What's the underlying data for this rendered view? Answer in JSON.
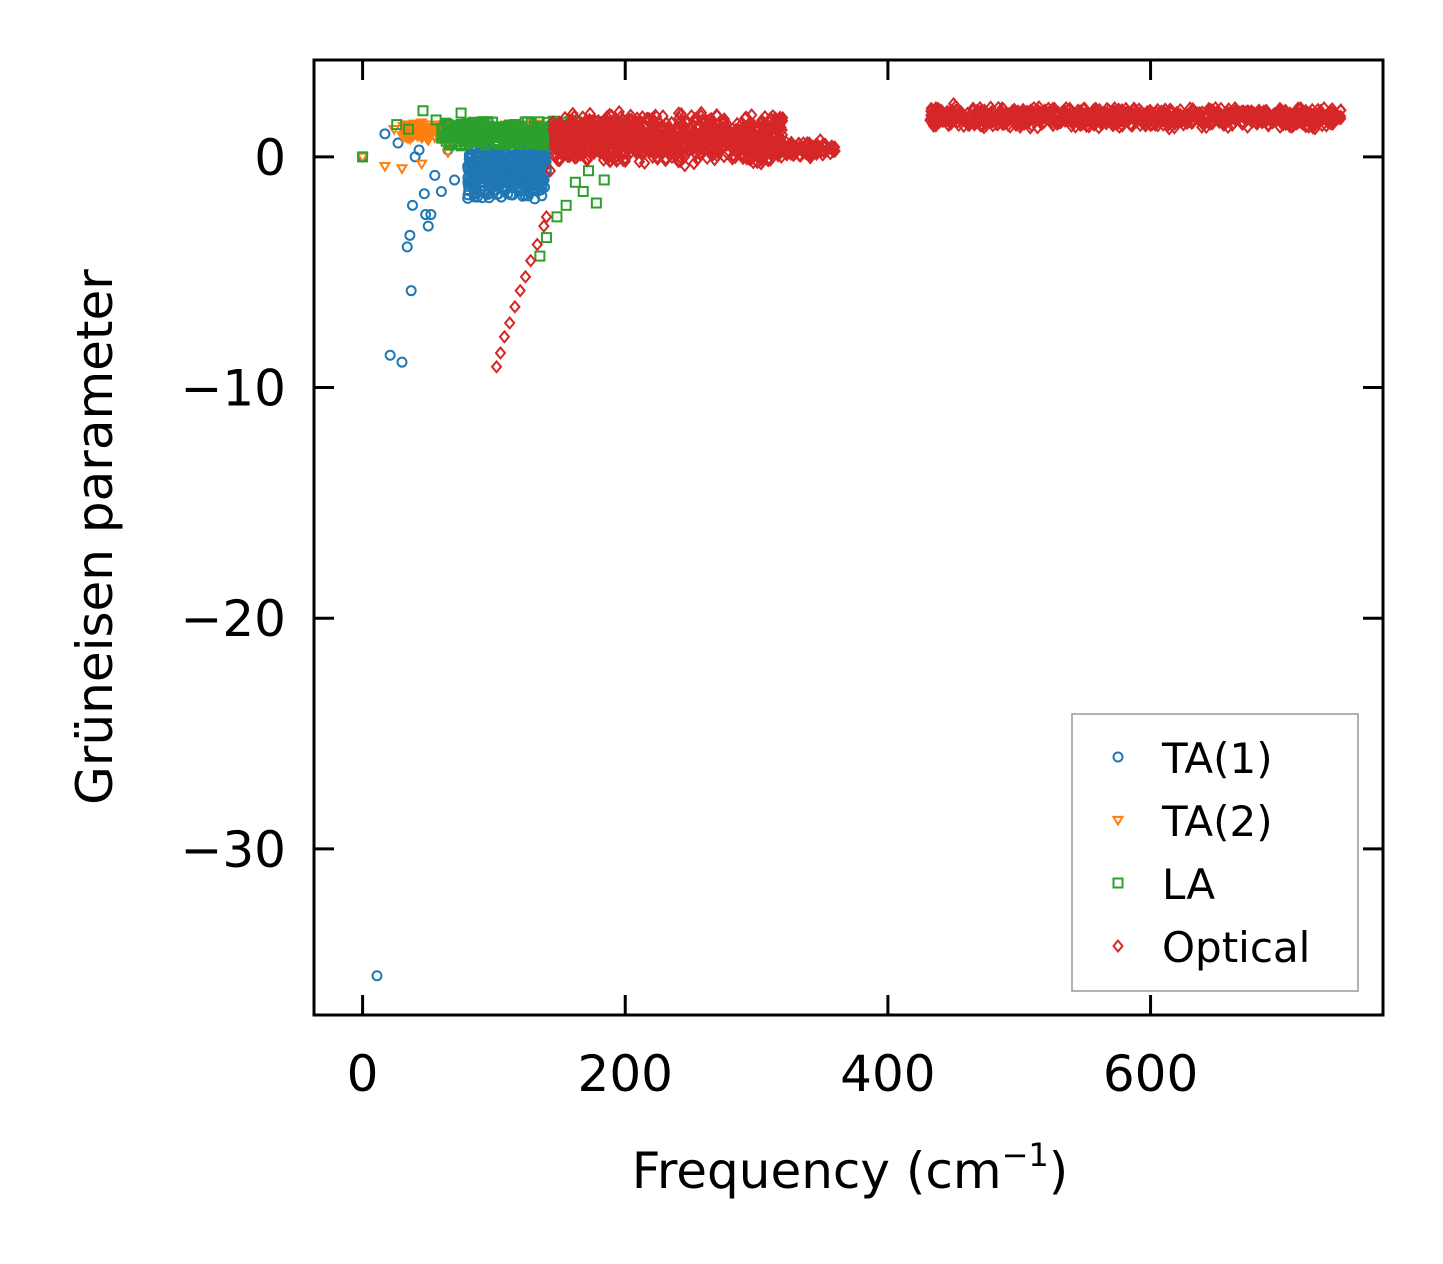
{
  "chart_data": {
    "type": "scatter",
    "xlabel": "Frequency (cm",
    "xlabel_sup": "−1",
    "xlabel_close": ")",
    "ylabel": "Grüneisen parameter",
    "xlim": [
      -37,
      777
    ],
    "ylim": [
      -37.2,
      4.2
    ],
    "xticks": [
      0,
      200,
      400,
      600
    ],
    "yticks": [
      0,
      -10,
      -20,
      -30
    ],
    "xtick_labels": [
      "0",
      "200",
      "400",
      "600"
    ],
    "ytick_labels": [
      "0",
      "−10",
      "−20",
      "−30"
    ],
    "legend_position": "lower-right",
    "series": [
      {
        "name": "TA(1)",
        "marker": "circle",
        "color": "#1f77b4",
        "points": [
          [
            0,
            0
          ],
          [
            11,
            -35.5
          ],
          [
            17,
            1
          ],
          [
            21,
            -8.6
          ],
          [
            27,
            0.6
          ],
          [
            30,
            -8.9
          ],
          [
            34,
            -3.9
          ],
          [
            36,
            -3.4
          ],
          [
            37,
            -5.8
          ],
          [
            38,
            -2.1
          ],
          [
            40,
            0
          ],
          [
            43,
            0.3
          ],
          [
            47,
            -1.6
          ],
          [
            48,
            -2.5
          ],
          [
            50,
            -3
          ],
          [
            52,
            -2.5
          ],
          [
            55,
            -0.8
          ],
          [
            60,
            -1.5
          ],
          [
            65,
            0.3
          ],
          [
            70,
            -1
          ],
          [
            75,
            0.5
          ],
          [
            80,
            -0.4
          ],
          [
            85,
            -1.3
          ]
        ],
        "clusters": [
          {
            "x_min": 80,
            "x_max": 140,
            "y_center": -0.6,
            "y_spread": 1.3,
            "count": 500
          }
        ]
      },
      {
        "name": "TA(2)",
        "marker": "triangle-down",
        "color": "#ff7f0e",
        "points": [
          [
            0,
            0
          ],
          [
            17,
            -0.4
          ],
          [
            24,
            1.2
          ],
          [
            30,
            -0.5
          ],
          [
            38,
            1.3
          ],
          [
            45,
            -0.3
          ],
          [
            55,
            1.4
          ],
          [
            65,
            0.2
          ]
        ],
        "clusters": [
          {
            "x_min": 30,
            "x_max": 140,
            "y_center": 1.1,
            "y_spread": 0.4,
            "count": 350
          }
        ]
      },
      {
        "name": "LA",
        "marker": "square",
        "color": "#2ca02c",
        "points": [
          [
            0,
            0
          ],
          [
            26,
            1.4
          ],
          [
            35,
            1.2
          ],
          [
            46,
            2.0
          ],
          [
            56,
            1.6
          ],
          [
            75,
            1.9
          ],
          [
            135,
            -4.3
          ],
          [
            140,
            -3.5
          ],
          [
            148,
            -2.6
          ],
          [
            155,
            -2.1
          ],
          [
            162,
            -1.1
          ],
          [
            168,
            -1.5
          ],
          [
            172,
            -0.6
          ],
          [
            178,
            -2.0
          ],
          [
            184,
            -1.0
          ]
        ],
        "clusters": [
          {
            "x_min": 60,
            "x_max": 200,
            "y_center": 1.0,
            "y_spread": 0.6,
            "count": 500
          }
        ]
      },
      {
        "name": "Optical",
        "marker": "diamond",
        "color": "#d62728",
        "points": [
          [
            102,
            -9.1
          ],
          [
            105,
            -8.5
          ],
          [
            108,
            -7.8
          ],
          [
            112,
            -7.2
          ],
          [
            116,
            -6.5
          ],
          [
            120,
            -5.8
          ],
          [
            124,
            -5.2
          ],
          [
            128,
            -4.5
          ],
          [
            133,
            -3.8
          ],
          [
            138,
            -3.0
          ],
          [
            140,
            -2.6
          ],
          [
            143,
            -0.6
          ],
          [
            150,
            1.5
          ],
          [
            450,
            2.3
          ]
        ],
        "clusters": [
          {
            "x_min": 145,
            "x_max": 320,
            "y_center": 0.8,
            "y_spread": 1.2,
            "count": 900
          },
          {
            "x_min": 300,
            "x_max": 360,
            "y_center": 0.35,
            "y_spread": 0.4,
            "count": 150
          },
          {
            "x_min": 432,
            "x_max": 745,
            "y_center": 1.7,
            "y_spread": 0.5,
            "count": 900
          }
        ]
      }
    ]
  }
}
